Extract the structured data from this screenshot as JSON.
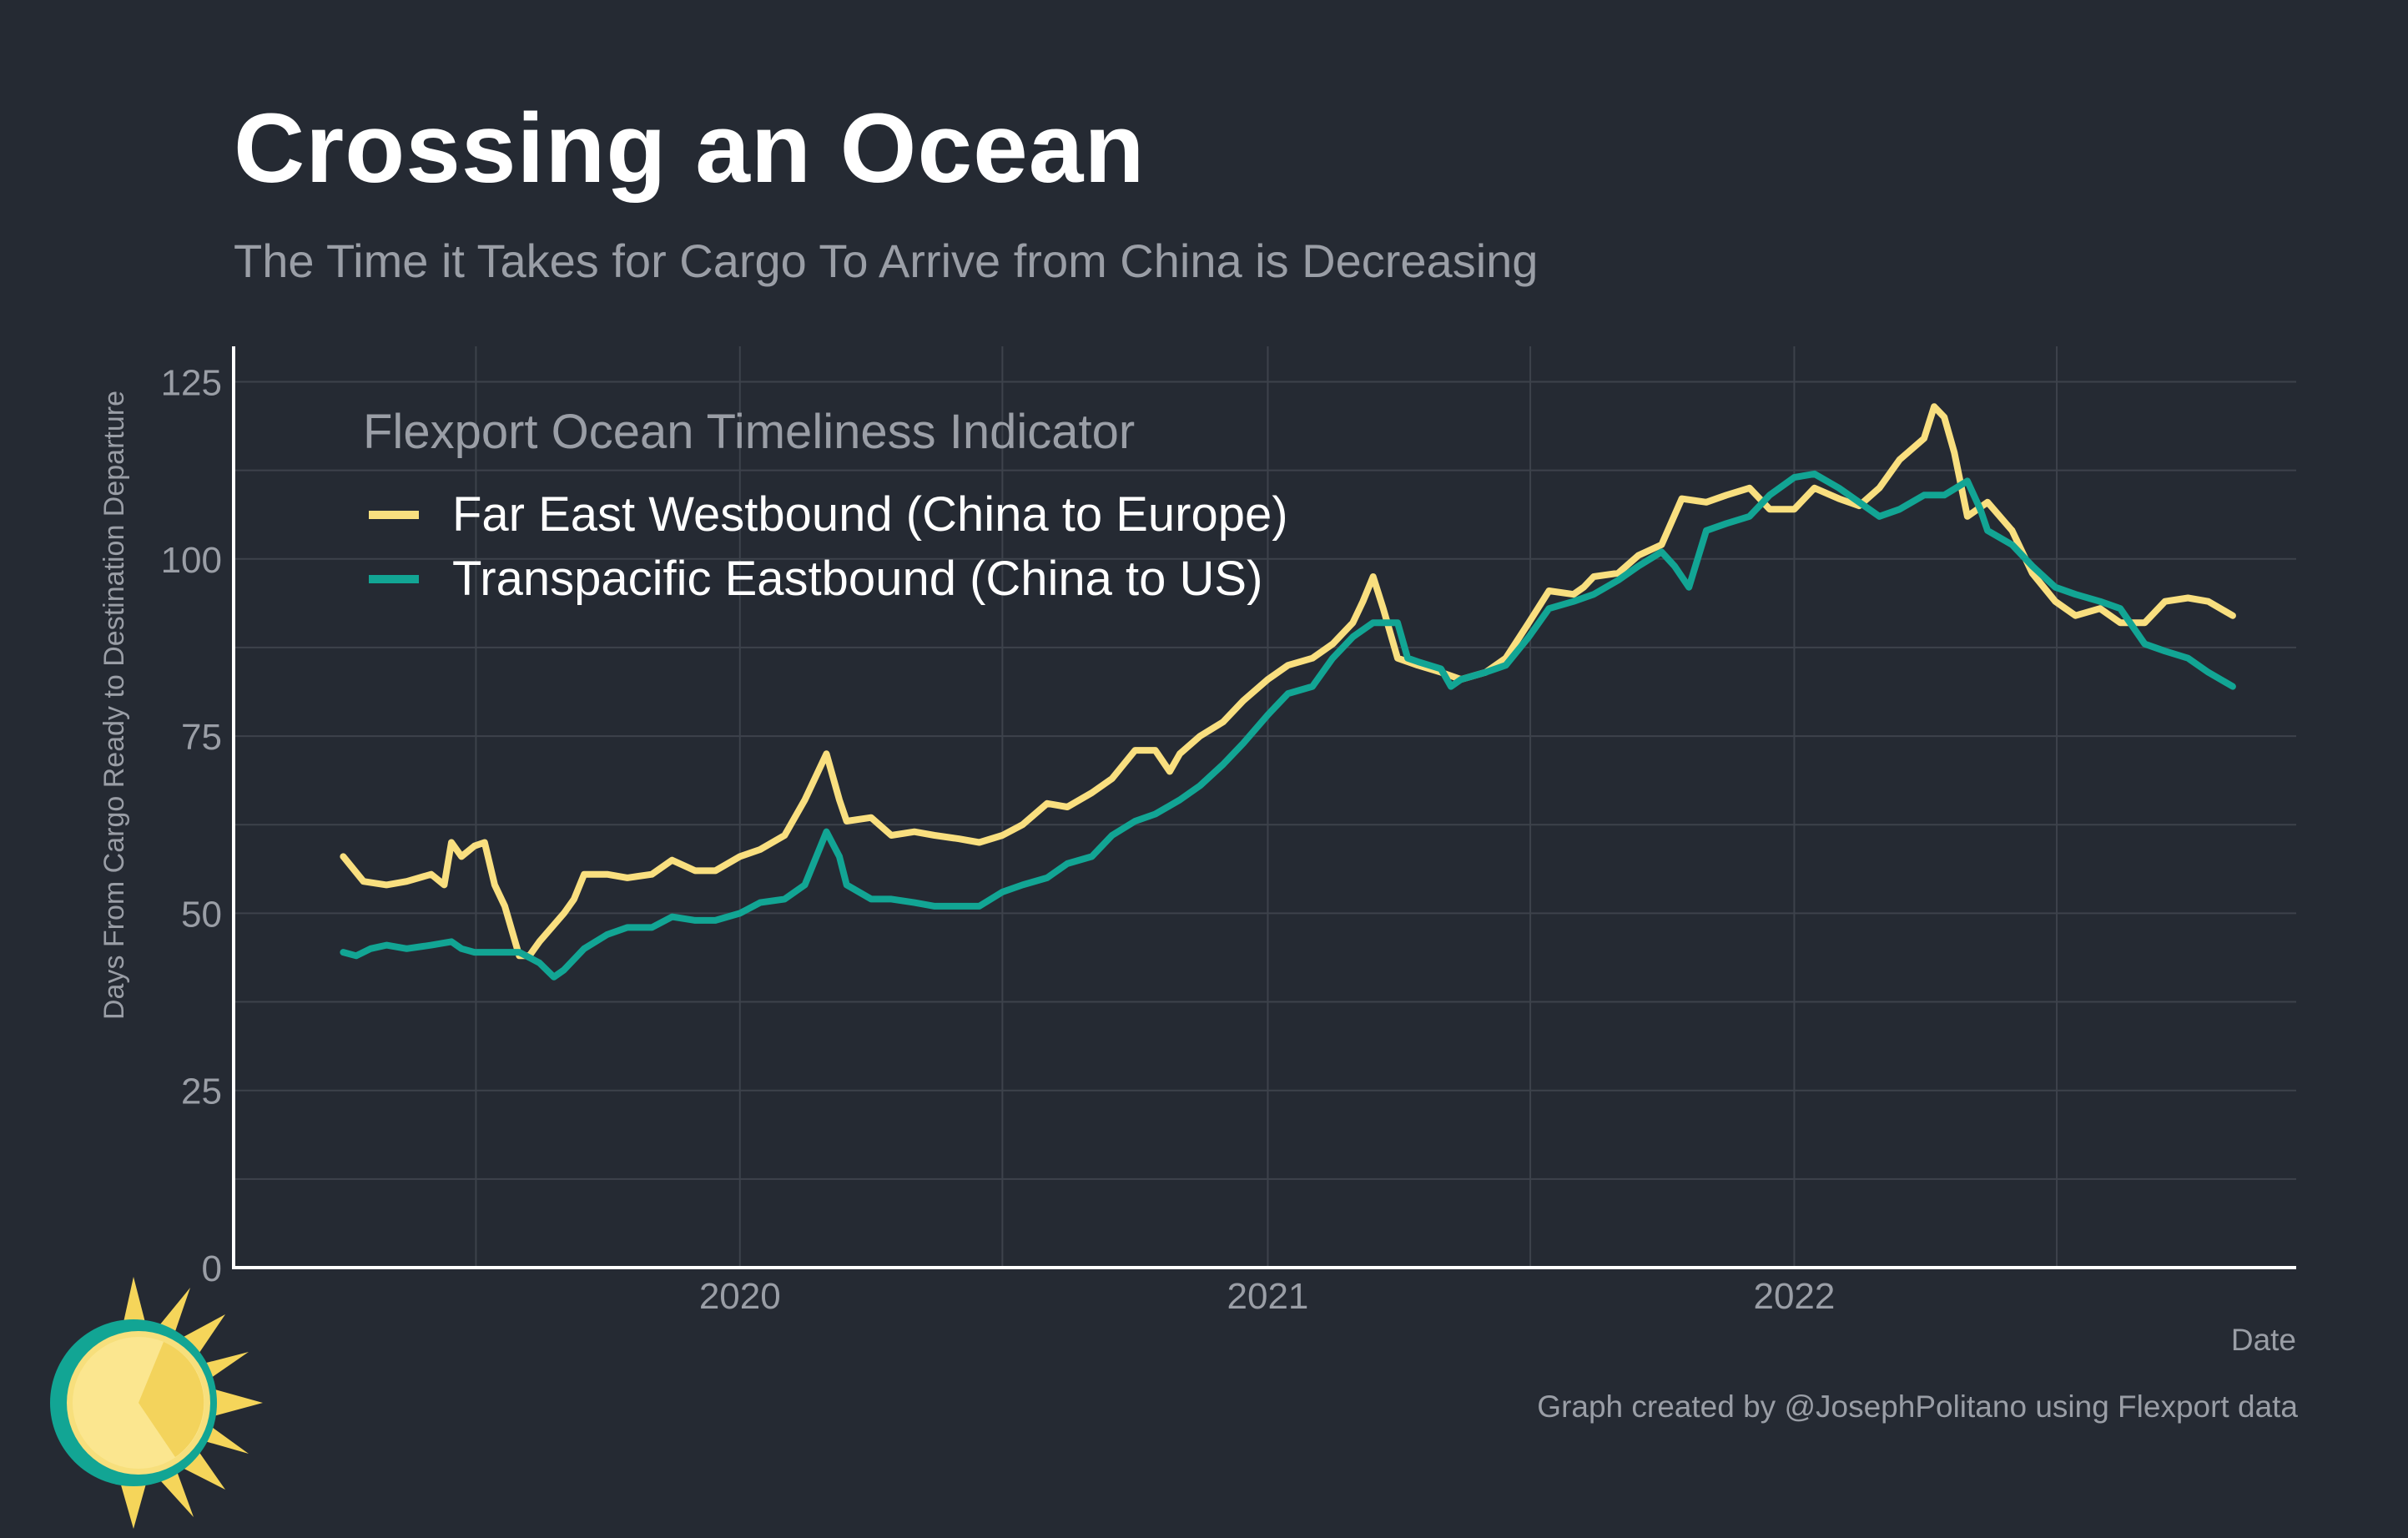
{
  "title": "Crossing an Ocean",
  "subtitle": "The Time it Takes for Cargo To Arrive from China is Decreasing",
  "caption": "Graph created by @JosephPolitano using Flexport data",
  "logo_icon": "sun-icon",
  "chart_data": {
    "type": "line",
    "xlabel": "Date",
    "ylabel": "Days From Cargo Ready to Destination Departure",
    "ylim": [
      0,
      130
    ],
    "xlim": [
      "2019-01-15",
      "2022-12-15"
    ],
    "y_ticks": [
      0,
      25,
      50,
      75,
      100,
      125
    ],
    "x_ticks": [
      {
        "date": "2020-01-01",
        "label": "2020"
      },
      {
        "date": "2021-01-01",
        "label": "2021"
      },
      {
        "date": "2022-01-01",
        "label": "2022"
      }
    ],
    "grid": true,
    "legend": {
      "title": "Flexport Ocean Timeliness Indicator",
      "placement": "top-left"
    },
    "series": [
      {
        "name": "Far East Westbound (China to Europe)",
        "color": "#f9df7f",
        "points": [
          [
            "2019-04-01",
            58
          ],
          [
            "2019-04-15",
            54.5
          ],
          [
            "2019-05-01",
            54
          ],
          [
            "2019-05-15",
            54.5
          ],
          [
            "2019-06-01",
            55.5
          ],
          [
            "2019-06-10",
            54
          ],
          [
            "2019-06-15",
            60
          ],
          [
            "2019-06-22",
            58
          ],
          [
            "2019-07-01",
            59.5
          ],
          [
            "2019-07-08",
            60
          ],
          [
            "2019-07-15",
            54
          ],
          [
            "2019-07-22",
            51
          ],
          [
            "2019-08-01",
            44
          ],
          [
            "2019-08-08",
            44
          ],
          [
            "2019-08-15",
            46
          ],
          [
            "2019-09-01",
            50
          ],
          [
            "2019-09-08",
            52
          ],
          [
            "2019-09-15",
            55.5
          ],
          [
            "2019-10-01",
            55.5
          ],
          [
            "2019-10-15",
            55
          ],
          [
            "2019-11-01",
            55.5
          ],
          [
            "2019-11-15",
            57.5
          ],
          [
            "2019-12-01",
            56
          ],
          [
            "2019-12-15",
            56
          ],
          [
            "2020-01-01",
            58
          ],
          [
            "2020-01-15",
            59
          ],
          [
            "2020-02-01",
            61
          ],
          [
            "2020-02-15",
            66
          ],
          [
            "2020-03-01",
            72.5
          ],
          [
            "2020-03-10",
            66
          ],
          [
            "2020-03-15",
            63
          ],
          [
            "2020-04-01",
            63.5
          ],
          [
            "2020-04-15",
            61
          ],
          [
            "2020-05-01",
            61.5
          ],
          [
            "2020-05-15",
            61
          ],
          [
            "2020-06-01",
            60.5
          ],
          [
            "2020-06-15",
            60
          ],
          [
            "2020-07-01",
            61
          ],
          [
            "2020-07-15",
            62.5
          ],
          [
            "2020-08-01",
            65.5
          ],
          [
            "2020-08-15",
            65
          ],
          [
            "2020-09-01",
            67
          ],
          [
            "2020-09-15",
            69
          ],
          [
            "2020-10-01",
            73
          ],
          [
            "2020-10-15",
            73
          ],
          [
            "2020-10-25",
            70
          ],
          [
            "2020-11-01",
            72.5
          ],
          [
            "2020-11-15",
            75
          ],
          [
            "2020-12-01",
            77
          ],
          [
            "2020-12-15",
            80
          ],
          [
            "2021-01-01",
            83
          ],
          [
            "2021-01-15",
            85
          ],
          [
            "2021-02-01",
            86
          ],
          [
            "2021-02-15",
            88
          ],
          [
            "2021-03-01",
            91
          ],
          [
            "2021-03-08",
            94
          ],
          [
            "2021-03-15",
            97.5
          ],
          [
            "2021-03-22",
            93
          ],
          [
            "2021-04-01",
            86
          ],
          [
            "2021-04-15",
            85
          ],
          [
            "2021-05-01",
            84
          ],
          [
            "2021-05-15",
            83
          ],
          [
            "2021-06-01",
            84
          ],
          [
            "2021-06-15",
            86
          ],
          [
            "2021-07-01",
            91
          ],
          [
            "2021-07-15",
            95.5
          ],
          [
            "2021-08-01",
            95
          ],
          [
            "2021-08-08",
            96
          ],
          [
            "2021-08-15",
            97.5
          ],
          [
            "2021-09-01",
            98
          ],
          [
            "2021-09-15",
            100.5
          ],
          [
            "2021-10-01",
            102
          ],
          [
            "2021-10-15",
            108.5
          ],
          [
            "2021-11-01",
            108
          ],
          [
            "2021-11-15",
            109
          ],
          [
            "2021-12-01",
            110
          ],
          [
            "2021-12-15",
            107
          ],
          [
            "2022-01-01",
            107
          ],
          [
            "2022-01-15",
            110
          ],
          [
            "2022-02-01",
            108.5
          ],
          [
            "2022-02-15",
            107.5
          ],
          [
            "2022-03-01",
            110
          ],
          [
            "2022-03-15",
            114
          ],
          [
            "2022-04-01",
            117
          ],
          [
            "2022-04-08",
            121.5
          ],
          [
            "2022-04-15",
            120
          ],
          [
            "2022-04-22",
            115
          ],
          [
            "2022-05-01",
            106
          ],
          [
            "2022-05-15",
            108
          ],
          [
            "2022-06-01",
            104
          ],
          [
            "2022-06-15",
            98
          ],
          [
            "2022-07-01",
            94
          ],
          [
            "2022-07-15",
            92
          ],
          [
            "2022-08-01",
            93
          ],
          [
            "2022-08-15",
            91
          ],
          [
            "2022-09-01",
            91
          ],
          [
            "2022-09-15",
            94
          ],
          [
            "2022-10-01",
            94.5
          ],
          [
            "2022-10-15",
            94
          ],
          [
            "2022-11-01",
            92
          ]
        ]
      },
      {
        "name": "Transpacific Eastbound (China to US)",
        "color": "#12a594",
        "points": [
          [
            "2019-04-01",
            44.5
          ],
          [
            "2019-04-10",
            44
          ],
          [
            "2019-04-20",
            45
          ],
          [
            "2019-05-01",
            45.5
          ],
          [
            "2019-05-15",
            45
          ],
          [
            "2019-06-01",
            45.5
          ],
          [
            "2019-06-15",
            46
          ],
          [
            "2019-06-22",
            45
          ],
          [
            "2019-07-01",
            44.5
          ],
          [
            "2019-07-15",
            44.5
          ],
          [
            "2019-08-01",
            44.5
          ],
          [
            "2019-08-15",
            43
          ],
          [
            "2019-08-25",
            41
          ],
          [
            "2019-09-01",
            42
          ],
          [
            "2019-09-15",
            45
          ],
          [
            "2019-10-01",
            47
          ],
          [
            "2019-10-15",
            48
          ],
          [
            "2019-11-01",
            48
          ],
          [
            "2019-11-15",
            49.5
          ],
          [
            "2019-12-01",
            49
          ],
          [
            "2019-12-15",
            49
          ],
          [
            "2020-01-01",
            50
          ],
          [
            "2020-01-15",
            51.5
          ],
          [
            "2020-02-01",
            52
          ],
          [
            "2020-02-15",
            54
          ],
          [
            "2020-03-01",
            61.5
          ],
          [
            "2020-03-10",
            58
          ],
          [
            "2020-03-15",
            54
          ],
          [
            "2020-04-01",
            52
          ],
          [
            "2020-04-15",
            52
          ],
          [
            "2020-05-01",
            51.5
          ],
          [
            "2020-05-15",
            51
          ],
          [
            "2020-06-01",
            51
          ],
          [
            "2020-06-15",
            51
          ],
          [
            "2020-07-01",
            53
          ],
          [
            "2020-07-15",
            54
          ],
          [
            "2020-08-01",
            55
          ],
          [
            "2020-08-15",
            57
          ],
          [
            "2020-09-01",
            58
          ],
          [
            "2020-09-15",
            61
          ],
          [
            "2020-10-01",
            63
          ],
          [
            "2020-10-15",
            64
          ],
          [
            "2020-11-01",
            66
          ],
          [
            "2020-11-15",
            68
          ],
          [
            "2020-12-01",
            71
          ],
          [
            "2020-12-15",
            74
          ],
          [
            "2021-01-01",
            78
          ],
          [
            "2021-01-15",
            81
          ],
          [
            "2021-02-01",
            82
          ],
          [
            "2021-02-15",
            86
          ],
          [
            "2021-03-01",
            89
          ],
          [
            "2021-03-15",
            91
          ],
          [
            "2021-04-01",
            91
          ],
          [
            "2021-04-08",
            86
          ],
          [
            "2021-04-15",
            85.5
          ],
          [
            "2021-05-01",
            84.5
          ],
          [
            "2021-05-08",
            82
          ],
          [
            "2021-05-15",
            83
          ],
          [
            "2021-06-01",
            84
          ],
          [
            "2021-06-15",
            85
          ],
          [
            "2021-07-01",
            89
          ],
          [
            "2021-07-15",
            93
          ],
          [
            "2021-08-01",
            94
          ],
          [
            "2021-08-15",
            95
          ],
          [
            "2021-09-01",
            97
          ],
          [
            "2021-09-15",
            99
          ],
          [
            "2021-10-01",
            101
          ],
          [
            "2021-10-10",
            99
          ],
          [
            "2021-10-20",
            96
          ],
          [
            "2021-11-01",
            104
          ],
          [
            "2021-11-15",
            105
          ],
          [
            "2021-12-01",
            106
          ],
          [
            "2021-12-15",
            109
          ],
          [
            "2022-01-01",
            111.5
          ],
          [
            "2022-01-15",
            112
          ],
          [
            "2022-02-01",
            110
          ],
          [
            "2022-02-15",
            108
          ],
          [
            "2022-03-01",
            106
          ],
          [
            "2022-03-15",
            107
          ],
          [
            "2022-04-01",
            109
          ],
          [
            "2022-04-15",
            109
          ],
          [
            "2022-05-01",
            111
          ],
          [
            "2022-05-10",
            107
          ],
          [
            "2022-05-15",
            104
          ],
          [
            "2022-06-01",
            102
          ],
          [
            "2022-06-15",
            99
          ],
          [
            "2022-07-01",
            96
          ],
          [
            "2022-07-15",
            95
          ],
          [
            "2022-08-01",
            94
          ],
          [
            "2022-08-15",
            93
          ],
          [
            "2022-09-01",
            88
          ],
          [
            "2022-09-15",
            87
          ],
          [
            "2022-10-01",
            86
          ],
          [
            "2022-10-15",
            84
          ],
          [
            "2022-11-01",
            82
          ]
        ]
      }
    ]
  }
}
